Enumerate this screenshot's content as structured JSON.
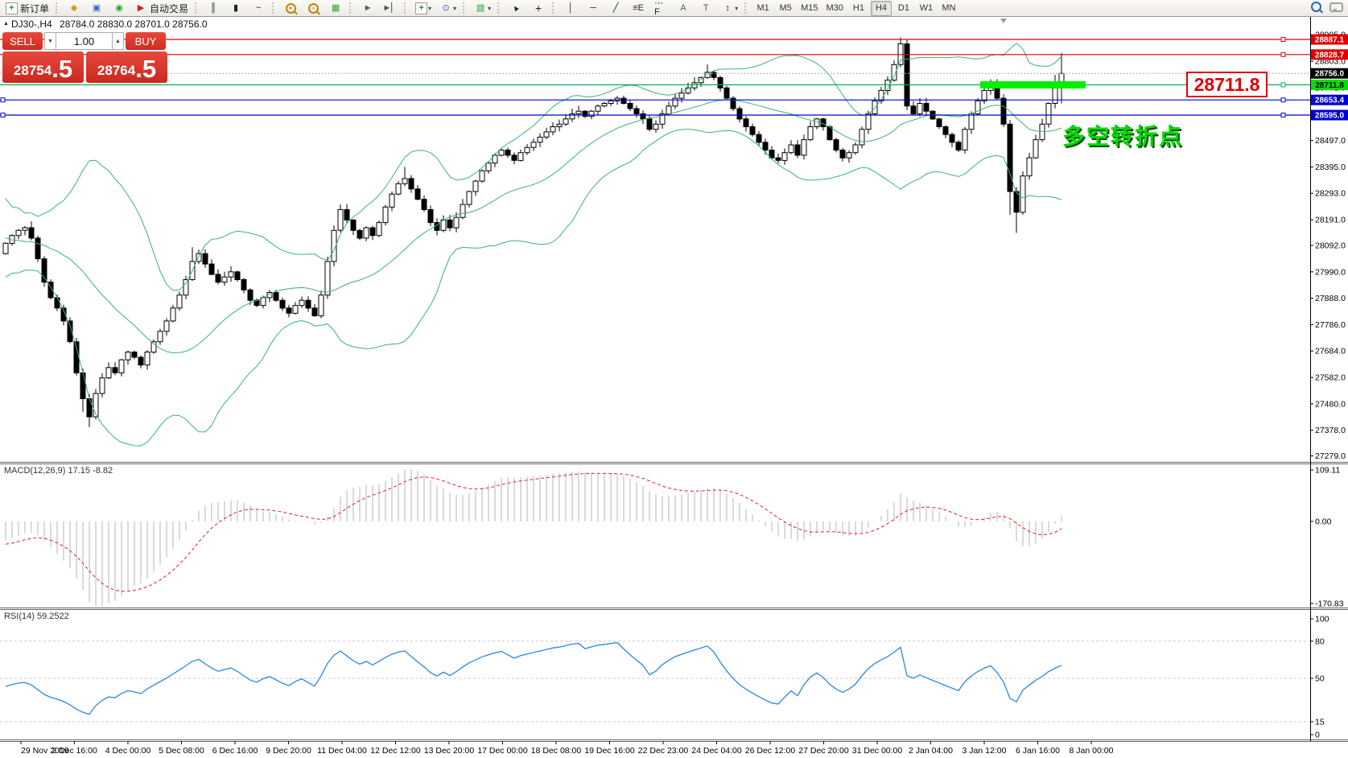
{
  "toolbar": {
    "new_order_label": "新订单",
    "autotrading_label": "自动交易",
    "timeframes": [
      "M1",
      "M5",
      "M15",
      "M30",
      "H1",
      "H4",
      "D1",
      "W1",
      "MN"
    ],
    "active_timeframe": "H4"
  },
  "icons": {
    "collapse": "▲",
    "spin_down": "▼",
    "spin_up": "▲",
    "new_order_plus": "+",
    "styler": "◆",
    "metaeditor": "▣",
    "signals": "◉",
    "autotrading_play": "▶",
    "bars_chart": "║",
    "candles_chart": "▮",
    "line_chart": "~",
    "zoom_in_sign": "+",
    "zoom_out_sign": "−",
    "tile": "▦",
    "step_forward": "►",
    "step_end": "►▏",
    "add_indicator": "+",
    "periods": "⊙",
    "templates": "▧",
    "cursor": "▲",
    "crosshair": "+",
    "vline": "│",
    "hline": "─",
    "trendline": "╱",
    "fibo": "≡E",
    "channel": "⋯F",
    "text": "A",
    "text_label": "T",
    "arrows": "↕",
    "dropdown": "▾"
  },
  "chart": {
    "symbol_period": "DJ30-,H4",
    "ohlc_text": "28784.0 28830.0 28701.0 28756.0"
  },
  "one_click": {
    "sell_label": "SELL",
    "buy_label": "BUY",
    "volume": "1.00",
    "sell_price": "28754",
    "sell_price_big": ".5",
    "buy_price": "28764",
    "buy_price_big": ".5"
  },
  "annotations": {
    "price_box": "28711.8",
    "turning_point": "多空转折点"
  },
  "chart_data": {
    "type": "candlestick",
    "symbol": "DJ30-",
    "timeframe": "H4",
    "ohlc_display": {
      "open": 28784.0,
      "high": 28830.0,
      "low": 28701.0,
      "close": 28756.0
    },
    "price_range": [
      27256,
      28971
    ],
    "price_axis_ticks": [
      28905.0,
      28803.0,
      28701.0,
      28497.0,
      28395.0,
      28293.0,
      28191.0,
      28092.0,
      27990.0,
      27888.0,
      27786.0,
      27684.0,
      27582.0,
      27480.0,
      27378.0,
      27279.0
    ],
    "time_labels": [
      "29 Nov 2019",
      "2 Dec 16:00",
      "4 Dec 00:00",
      "5 Dec 08:00",
      "6 Dec 16:00",
      "9 Dec 20:00",
      "11 Dec 04:00",
      "12 Dec 12:00",
      "13 Dec 20:00",
      "17 Dec 00:00",
      "18 Dec 08:00",
      "19 Dec 16:00",
      "22 Dec 23:00",
      "24 Dec 04:00",
      "26 Dec 12:00",
      "27 Dec 20:00",
      "31 Dec 00:00",
      "2 Jan 04:00",
      "3 Jan 12:00",
      "6 Jan 16:00",
      "8 Jan 00:00"
    ],
    "candles": {
      "first_open": 28060,
      "closes": [
        28100,
        28130,
        28150,
        28160,
        28120,
        28040,
        27950,
        27890,
        27850,
        27800,
        27720,
        27600,
        27500,
        27430,
        27520,
        27580,
        27620,
        27600,
        27650,
        27680,
        27660,
        27630,
        27680,
        27720,
        27760,
        27800,
        27850,
        27900,
        27960,
        28030,
        28060,
        28020,
        27980,
        27950,
        27970,
        27990,
        27960,
        27920,
        27880,
        27860,
        27890,
        27910,
        27880,
        27850,
        27830,
        27860,
        27880,
        27850,
        27820,
        27900,
        28030,
        28150,
        28230,
        28190,
        28150,
        28120,
        28160,
        28130,
        28180,
        28240,
        28290,
        28330,
        28350,
        28310,
        28270,
        28230,
        28180,
        28150,
        28190,
        28160,
        28200,
        28250,
        28300,
        28340,
        28380,
        28410,
        28440,
        28460,
        28440,
        28420,
        28450,
        28470,
        28490,
        28510,
        28530,
        28550,
        28560,
        28580,
        28600,
        28610,
        28590,
        28610,
        28630,
        28640,
        28650,
        28660,
        28640,
        28620,
        28600,
        28580,
        28540,
        28560,
        28600,
        28630,
        28660,
        28680,
        28700,
        28720,
        28740,
        28760,
        28740,
        28700,
        28660,
        28620,
        28580,
        28550,
        28520,
        28490,
        28460,
        28430,
        28420,
        28450,
        28480,
        28440,
        28500,
        28550,
        28580,
        28550,
        28500,
        28460,
        28430,
        28450,
        28480,
        28540,
        28600,
        28650,
        28690,
        28730,
        28790,
        28870,
        28630,
        28600,
        28640,
        28610,
        28580,
        28550,
        28520,
        28490,
        28460,
        28540,
        28600,
        28650,
        28690,
        28720,
        28660,
        28560,
        28300,
        28220,
        28360,
        28430,
        28500,
        28560,
        28640,
        28700,
        28756
      ],
      "high_overrides": {
        "4": 28185,
        "29": 28085,
        "62": 28395,
        "109": 28790,
        "139": 28895,
        "140": 28885,
        "163": 28750,
        "164": 28835
      },
      "low_overrides": {
        "12": 27450,
        "13": 27390,
        "156": 28210,
        "157": 28140,
        "164": 28640
      },
      "warmup_closes_for_indicators": [
        28300,
        28180,
        28250,
        28120,
        28200,
        28080,
        28150,
        28040,
        28120,
        28000,
        28080,
        27980,
        28060,
        28120,
        28180,
        28100,
        28160,
        28080,
        28120
      ]
    },
    "indicators": {
      "bollinger": {
        "period": 20,
        "deviation": 2,
        "color": "#3cb371"
      },
      "macd": {
        "label": "MACD(12,26,9) 17.15 -8.82",
        "params": [
          12,
          26,
          9
        ],
        "value": 17.15,
        "signal": -8.82,
        "axis_labels": [
          "109.11",
          "0.00",
          "-170.83"
        ],
        "hist_color": "#b4b4b4",
        "signal_color": "#e02020"
      },
      "rsi": {
        "label": "RSI(14) 59.2522",
        "period": 14,
        "value": 59.2522,
        "levels": [
          80,
          50,
          15
        ],
        "axis_labels": [
          "100",
          "80",
          "50",
          "15",
          "0"
        ],
        "axis_values": [
          100,
          80,
          50,
          15,
          0
        ],
        "color": "#2e86e0"
      }
    },
    "hlines": [
      {
        "price": 28887.1,
        "color": "#e00000",
        "tag_bg": "#e00000",
        "tag_fg": "#ffffff"
      },
      {
        "price": 28828.7,
        "color": "#e00000",
        "tag_bg": "#e00000",
        "tag_fg": "#ffffff"
      },
      {
        "price": 28711.8,
        "color": "#00b050",
        "tag_bg": "#00e000",
        "tag_fg": "#000000"
      },
      {
        "price": 28653.4,
        "color": "#0000d0",
        "tag_bg": "#0000d0",
        "tag_fg": "#ffffff",
        "left_handle": true
      },
      {
        "price": 28595.0,
        "color": "#0000d0",
        "tag_bg": "#0000d0",
        "tag_fg": "#ffffff",
        "left_handle": true
      }
    ],
    "current_price": {
      "value": 28756.0,
      "tag_bg": "#000000",
      "tag_fg": "#ffffff",
      "line_color": "#aaaaaa"
    },
    "highlight_zone": {
      "price": 28711.8,
      "start_index": 151.8,
      "end_index": 168.2,
      "thickness_px": 9,
      "color": "#00ef00"
    }
  }
}
